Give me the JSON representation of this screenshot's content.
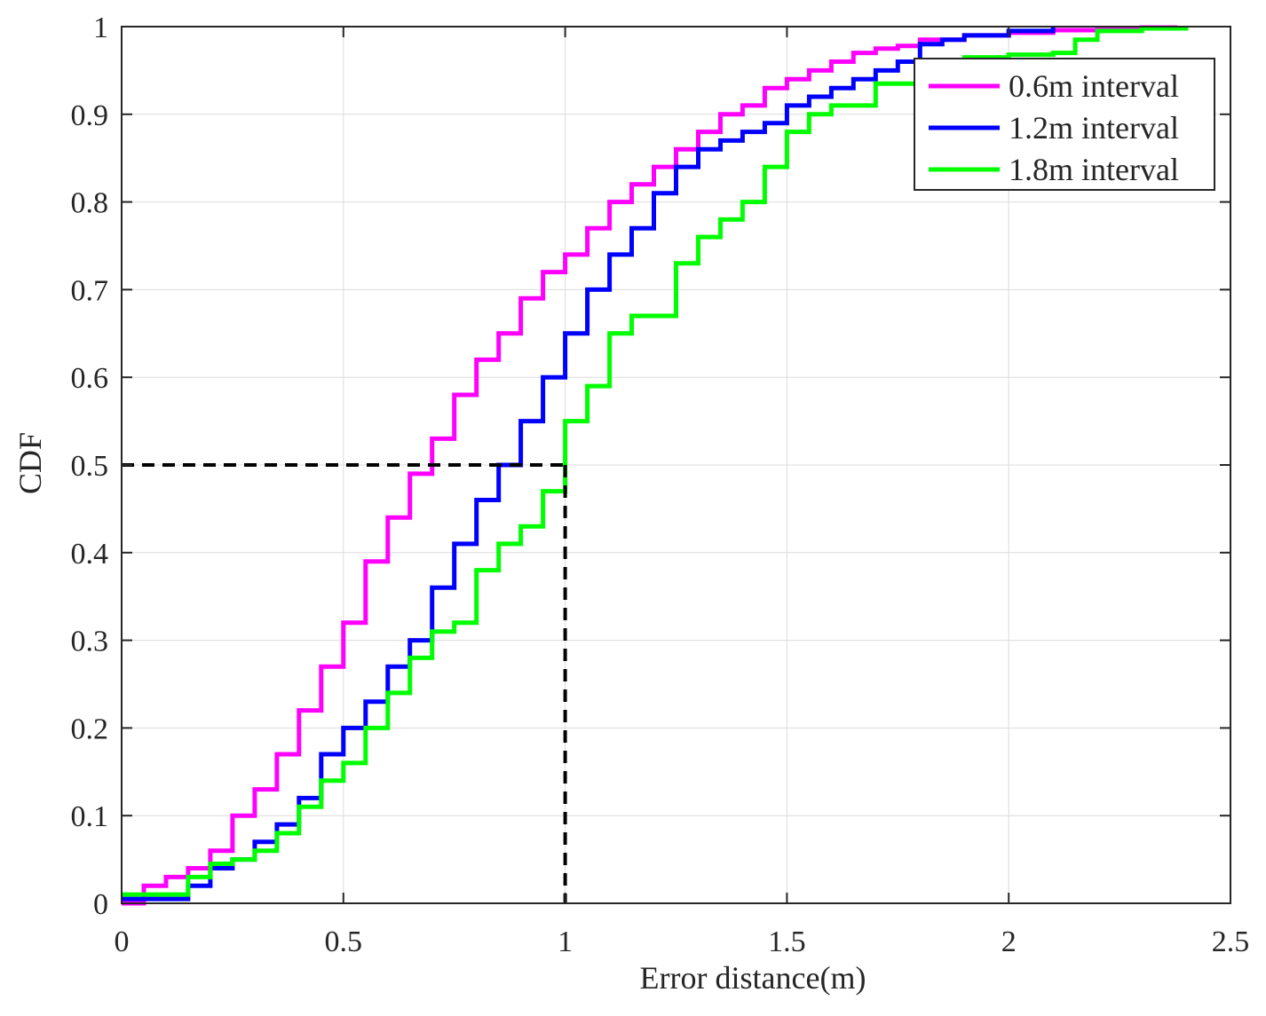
{
  "chart_data": {
    "type": "line",
    "title": "",
    "xlabel": "Error distance(m)",
    "ylabel": "CDF",
    "xlim": [
      0,
      2.5
    ],
    "ylim": [
      0,
      1
    ],
    "grid": true,
    "legend_position": "top-right",
    "x_ticks": [
      0,
      0.5,
      1,
      1.5,
      2,
      2.5
    ],
    "x_tick_labels": [
      "0",
      "0.5",
      "1",
      "1.5",
      "2",
      "2.5"
    ],
    "y_ticks": [
      0,
      0.1,
      0.2,
      0.3,
      0.4,
      0.5,
      0.6,
      0.7,
      0.8,
      0.9,
      1
    ],
    "y_tick_labels": [
      "0",
      "0.1",
      "0.2",
      "0.3",
      "0.4",
      "0.5",
      "0.6",
      "0.7",
      "0.8",
      "0.9",
      "1"
    ],
    "series": [
      {
        "name": "0.6m interval",
        "color": "#ff00ff",
        "x": [
          0.0,
          0.05,
          0.1,
          0.15,
          0.2,
          0.25,
          0.3,
          0.35,
          0.4,
          0.45,
          0.5,
          0.55,
          0.6,
          0.65,
          0.7,
          0.75,
          0.8,
          0.85,
          0.9,
          0.95,
          1.0,
          1.05,
          1.1,
          1.15,
          1.2,
          1.25,
          1.3,
          1.35,
          1.4,
          1.45,
          1.5,
          1.55,
          1.6,
          1.65,
          1.7,
          1.75,
          1.8,
          1.9,
          2.0,
          2.1,
          2.2,
          2.3,
          2.38
        ],
        "y": [
          0.0,
          0.02,
          0.03,
          0.04,
          0.06,
          0.1,
          0.13,
          0.17,
          0.22,
          0.27,
          0.32,
          0.39,
          0.44,
          0.49,
          0.53,
          0.58,
          0.62,
          0.65,
          0.69,
          0.72,
          0.74,
          0.77,
          0.8,
          0.82,
          0.84,
          0.86,
          0.88,
          0.9,
          0.91,
          0.93,
          0.94,
          0.95,
          0.96,
          0.97,
          0.975,
          0.978,
          0.985,
          0.99,
          0.993,
          0.996,
          0.998,
          0.999,
          1.0
        ]
      },
      {
        "name": "1.2m interval",
        "color": "#0000ff",
        "x": [
          0.0,
          0.05,
          0.1,
          0.15,
          0.2,
          0.25,
          0.3,
          0.35,
          0.4,
          0.45,
          0.5,
          0.55,
          0.6,
          0.65,
          0.7,
          0.75,
          0.8,
          0.85,
          0.9,
          0.95,
          1.0,
          1.05,
          1.1,
          1.15,
          1.2,
          1.25,
          1.3,
          1.35,
          1.4,
          1.45,
          1.5,
          1.55,
          1.6,
          1.65,
          1.7,
          1.75,
          1.8,
          1.85,
          1.9,
          2.0,
          2.1
        ],
        "y": [
          0.005,
          0.005,
          0.005,
          0.02,
          0.04,
          0.05,
          0.07,
          0.09,
          0.12,
          0.17,
          0.2,
          0.23,
          0.27,
          0.3,
          0.36,
          0.41,
          0.46,
          0.5,
          0.55,
          0.6,
          0.65,
          0.7,
          0.74,
          0.77,
          0.81,
          0.84,
          0.86,
          0.87,
          0.88,
          0.89,
          0.91,
          0.92,
          0.93,
          0.94,
          0.95,
          0.96,
          0.98,
          0.985,
          0.99,
          0.995,
          1.0
        ]
      },
      {
        "name": "1.8m interval",
        "color": "#00ff00",
        "x": [
          0.0,
          0.05,
          0.1,
          0.15,
          0.2,
          0.25,
          0.3,
          0.35,
          0.4,
          0.45,
          0.5,
          0.55,
          0.6,
          0.65,
          0.7,
          0.75,
          0.8,
          0.85,
          0.9,
          0.95,
          1.0,
          1.05,
          1.1,
          1.15,
          1.2,
          1.25,
          1.3,
          1.35,
          1.4,
          1.45,
          1.5,
          1.55,
          1.6,
          1.7,
          1.8,
          1.9,
          2.0,
          2.1,
          2.15,
          2.2,
          2.3,
          2.4
        ],
        "y": [
          0.01,
          0.01,
          0.01,
          0.03,
          0.045,
          0.05,
          0.06,
          0.08,
          0.11,
          0.14,
          0.16,
          0.2,
          0.24,
          0.28,
          0.31,
          0.32,
          0.38,
          0.41,
          0.43,
          0.47,
          0.55,
          0.59,
          0.65,
          0.67,
          0.67,
          0.73,
          0.76,
          0.78,
          0.8,
          0.84,
          0.88,
          0.9,
          0.91,
          0.935,
          0.95,
          0.965,
          0.968,
          0.97,
          0.985,
          0.995,
          0.998,
          1.0
        ]
      }
    ],
    "reference_lines": {
      "color": "#000000",
      "style": "dashed",
      "horizontal": {
        "y": 0.5,
        "x_from": 0,
        "x_to": 1
      },
      "vertical": {
        "x": 1,
        "y_from": 0,
        "y_to": 0.5
      }
    }
  }
}
